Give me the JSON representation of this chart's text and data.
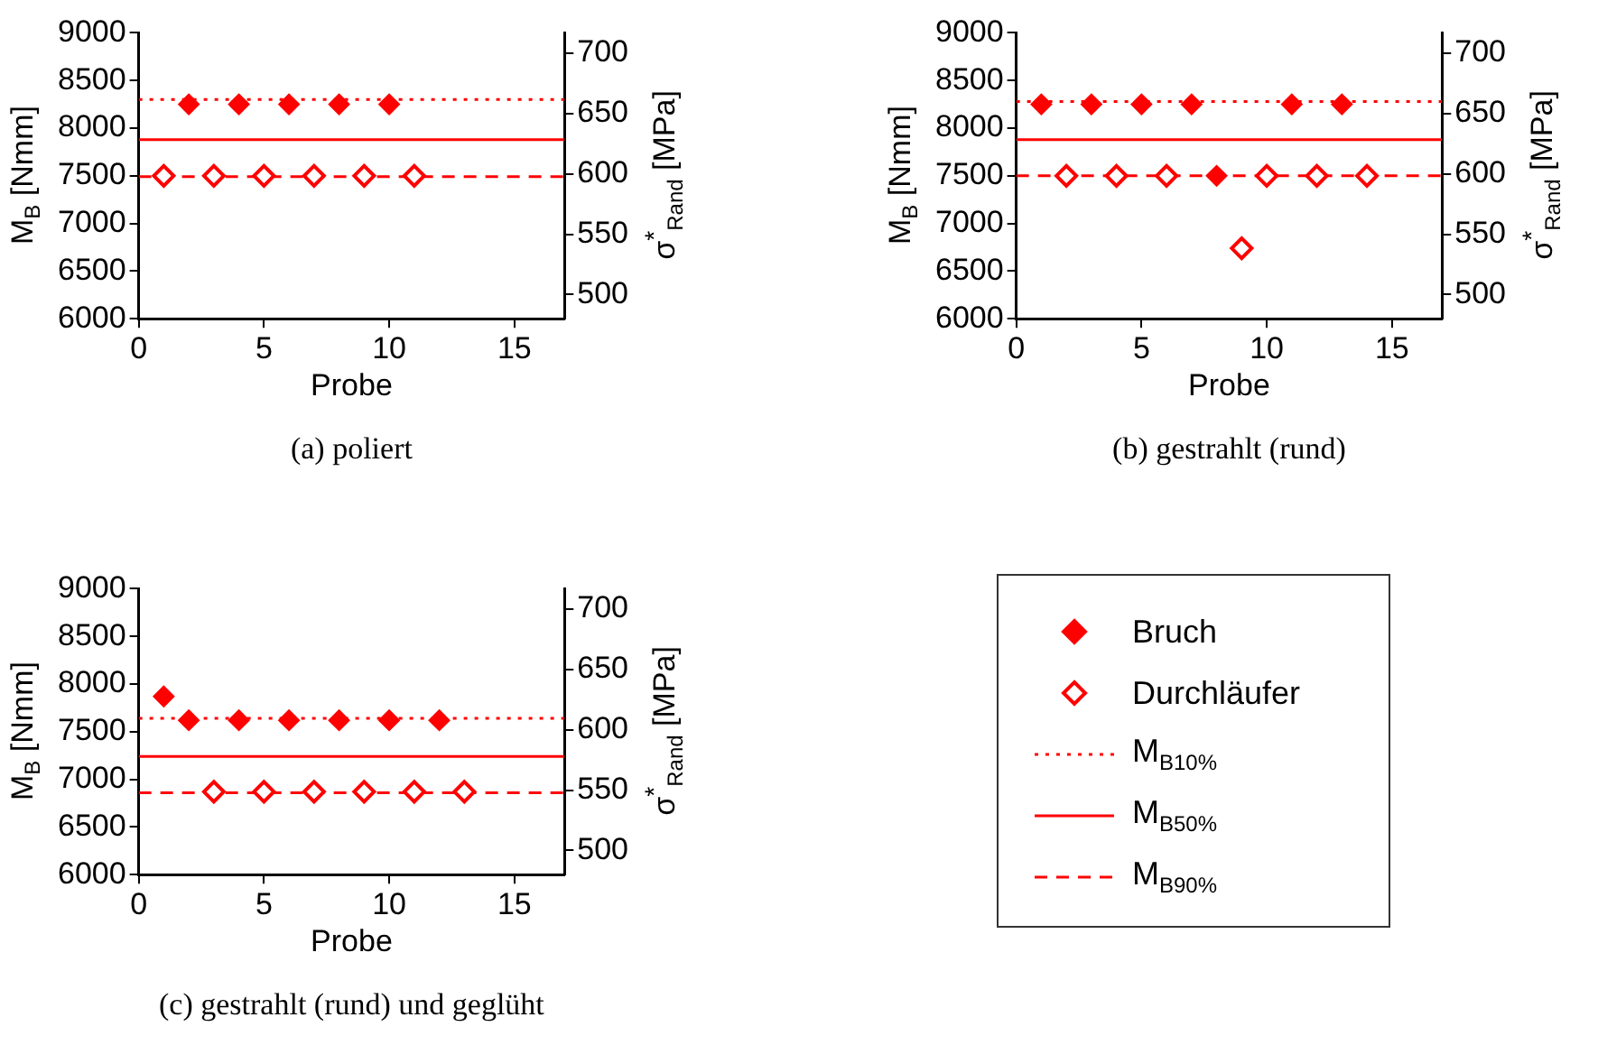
{
  "chart_data": [
    {
      "type": "scatter",
      "title": "(a) poliert",
      "xlabel": "Probe",
      "ylabel": "M$_{B}$ [Nmm]",
      "y2label": "σ$^{*}$$_{Rand}$ [MPa]",
      "xlim": [
        0,
        17
      ],
      "xticks": [
        0,
        5,
        10,
        15
      ],
      "ylim": [
        6000,
        9000
      ],
      "yticks": [
        6000,
        6500,
        7000,
        7500,
        8000,
        8500,
        9000
      ],
      "y2lim": [
        480,
        717
      ],
      "y2ticks": [
        500,
        550,
        600,
        650,
        700
      ],
      "grid": false,
      "marker": "diamond",
      "series": [
        {
          "color": "#ff0000",
          "x": [
            2,
            4,
            6,
            8,
            10
          ],
          "values": [
            8250,
            8250,
            8250,
            8250,
            8250
          ]
        },
        {
          "color": "#ff0000",
          "marker": "diamond-open",
          "x": [
            1,
            3,
            5,
            7,
            9,
            11
          ],
          "values": [
            7500,
            7500,
            7500,
            7500,
            7500,
            7500
          ]
        },
        {
          "type": "line",
          "color": "#ff0000",
          "line_style": "dotted",
          "marker": "none",
          "x": [
            0,
            17
          ],
          "values": [
            8300,
            8300
          ]
        },
        {
          "type": "line",
          "color": "#ff0000",
          "line_style": "solid",
          "marker": "none",
          "x": [
            0,
            17
          ],
          "values": [
            7880,
            7880
          ]
        },
        {
          "type": "line",
          "color": "#ff0000",
          "line_style": "dashed",
          "marker": "none",
          "x": [
            0,
            17
          ],
          "values": [
            7490,
            7490
          ]
        }
      ]
    },
    {
      "type": "scatter",
      "title": "(b) gestrahlt (rund)",
      "xlabel": "Probe",
      "ylabel": "M$_{B}$ [Nmm]",
      "y2label": "σ$^{*}$$_{Rand}$ [MPa]",
      "xlim": [
        0,
        17
      ],
      "xticks": [
        0,
        5,
        10,
        15
      ],
      "ylim": [
        6000,
        9000
      ],
      "yticks": [
        6000,
        6500,
        7000,
        7500,
        8000,
        8500,
        9000
      ],
      "y2lim": [
        480,
        717
      ],
      "y2ticks": [
        500,
        550,
        600,
        650,
        700
      ],
      "grid": false,
      "marker": "diamond",
      "series": [
        {
          "color": "#ff0000",
          "x": [
            1,
            3,
            5,
            7,
            8,
            11,
            13
          ],
          "values": [
            8250,
            8250,
            8250,
            8250,
            7500,
            8250,
            8250
          ]
        },
        {
          "color": "#ff0000",
          "marker": "diamond-open",
          "x": [
            2,
            4,
            6,
            9,
            10,
            12,
            14
          ],
          "values": [
            7500,
            7500,
            7500,
            6740,
            7500,
            7500,
            7500
          ]
        },
        {
          "type": "line",
          "color": "#ff0000",
          "line_style": "dotted",
          "marker": "none",
          "x": [
            0,
            17
          ],
          "values": [
            8280,
            8280
          ]
        },
        {
          "type": "line",
          "color": "#ff0000",
          "line_style": "solid",
          "marker": "none",
          "x": [
            0,
            17
          ],
          "values": [
            7880,
            7880
          ]
        },
        {
          "type": "line",
          "color": "#ff0000",
          "line_style": "dashed",
          "marker": "none",
          "x": [
            0,
            17
          ],
          "values": [
            7500,
            7500
          ]
        }
      ]
    },
    {
      "type": "scatter",
      "title": "(c) gestrahlt (rund) und geglüht",
      "xlabel": "Probe",
      "ylabel": "M$_{B}$ [Nmm]",
      "y2label": "σ$^{*}$$_{Rand}$ [MPa]",
      "xlim": [
        0,
        17
      ],
      "xticks": [
        0,
        5,
        10,
        15
      ],
      "ylim": [
        6000,
        9000
      ],
      "yticks": [
        6000,
        6500,
        7000,
        7500,
        8000,
        8500,
        9000
      ],
      "y2lim": [
        480,
        717
      ],
      "y2ticks": [
        500,
        550,
        600,
        650,
        700
      ],
      "grid": false,
      "marker": "diamond",
      "legend": "right",
      "series": [
        {
          "name": "Bruch",
          "color": "#ff0000",
          "x": [
            1,
            2,
            4,
            6,
            8,
            10,
            12
          ],
          "values": [
            7870,
            7620,
            7620,
            7620,
            7620,
            7620,
            7620
          ]
        },
        {
          "name": "Durchläufer",
          "color": "#ff0000",
          "marker": "diamond-open",
          "x": [
            3,
            5,
            7,
            9,
            11,
            13
          ],
          "values": [
            6870,
            6870,
            6870,
            6870,
            6870,
            6870
          ]
        },
        {
          "name": "M$_{B10%}$",
          "type": "line",
          "color": "#ff0000",
          "line_style": "dotted",
          "marker": "none",
          "x": [
            0,
            17
          ],
          "values": [
            7640,
            7640
          ]
        },
        {
          "name": "M$_{B50%}$",
          "type": "line",
          "color": "#ff0000",
          "line_style": "solid",
          "marker": "none",
          "x": [
            0,
            17
          ],
          "values": [
            7240,
            7240
          ]
        },
        {
          "name": "M$_{B90%}$",
          "type": "line",
          "color": "#ff0000",
          "line_style": "dashed",
          "marker": "none",
          "x": [
            0,
            17
          ],
          "values": [
            6860,
            6860
          ]
        }
      ]
    }
  ]
}
